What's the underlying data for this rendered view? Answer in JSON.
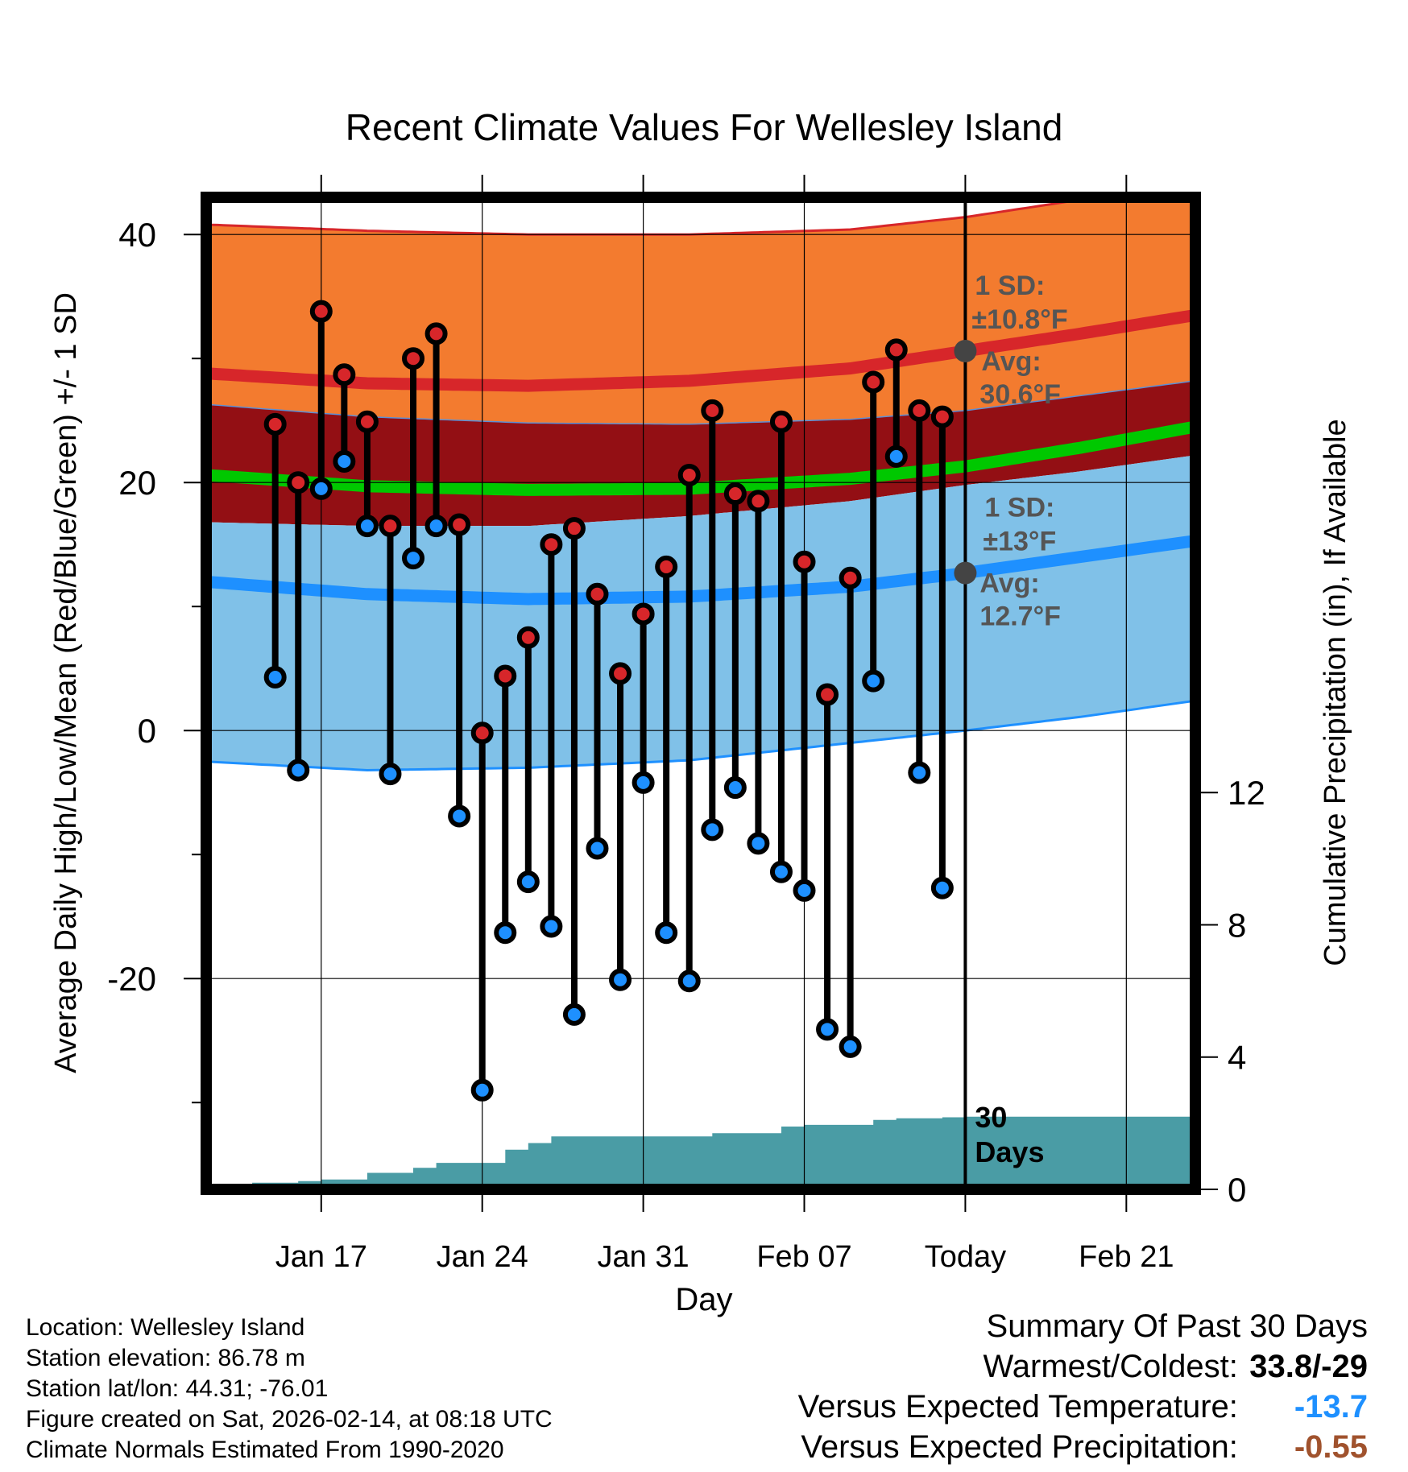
{
  "chart_data": {
    "type": "line",
    "title": "Recent Climate Values For Wellesley Island",
    "xlabel": "Day",
    "ylabel": "Average Daily High/Low/Mean (Red/Blue/Green) +/- 1 SD",
    "y2label": "Cumulative Precipitation (in), If Available",
    "ylim": [
      -37,
      43
    ],
    "y2lim": [
      0,
      30
    ],
    "day_range": [
      -33,
      10
    ],
    "yticks": [
      {
        "v": -20,
        "label": "-20"
      },
      {
        "v": 0,
        "label": "0"
      },
      {
        "v": 20,
        "label": "20"
      },
      {
        "v": 40,
        "label": "40"
      }
    ],
    "yminor": [
      -30,
      -10,
      10,
      30
    ],
    "y2ticks": [
      {
        "v": 0,
        "label": "0"
      },
      {
        "v": 4,
        "label": "4"
      },
      {
        "v": 8,
        "label": "8"
      },
      {
        "v": 12,
        "label": "12"
      }
    ],
    "xticks": [
      {
        "d": -28,
        "label": "Jan 17"
      },
      {
        "d": -21,
        "label": "Jan 24"
      },
      {
        "d": -14,
        "label": "Jan 31"
      },
      {
        "d": -7,
        "label": "Feb 07"
      },
      {
        "d": 0,
        "label": "Today"
      },
      {
        "d": 7,
        "label": "Feb 21"
      }
    ],
    "normals": {
      "days": [
        -33,
        -26,
        -19,
        -12,
        -5,
        0,
        5,
        10
      ],
      "high_mean": [
        28.8,
        28.0,
        27.8,
        28.2,
        29.2,
        30.6,
        32.0,
        33.5
      ],
      "high_upper": [
        40.8,
        40.3,
        40.0,
        40.0,
        40.4,
        41.4,
        42.8,
        44.3
      ],
      "high_lower": [
        26.3,
        25.3,
        24.8,
        24.7,
        25.1,
        25.8,
        27.0,
        28.2
      ],
      "mean": [
        20.6,
        19.7,
        19.4,
        19.5,
        20.3,
        21.3,
        22.8,
        24.5
      ],
      "low_mean": [
        12.0,
        11.0,
        10.6,
        10.8,
        11.6,
        12.7,
        14.0,
        15.3
      ],
      "low_upper": [
        16.8,
        16.5,
        16.5,
        17.3,
        18.5,
        19.8,
        20.9,
        22.2
      ],
      "low_lower": [
        -2.5,
        -3.2,
        -3.0,
        -2.4,
        -1.0,
        0.0,
        1.1,
        2.4
      ]
    },
    "daily": {
      "days": [
        -30,
        -29,
        -28,
        -27,
        -26,
        -25,
        -24,
        -23,
        -22,
        -21,
        -20,
        -19,
        -18,
        -17,
        -16,
        -15,
        -14,
        -13,
        -12,
        -11,
        -10,
        -9,
        -8,
        -7,
        -6,
        -5,
        -4,
        -3,
        -2,
        -1
      ],
      "high": [
        24.7,
        20.0,
        33.8,
        28.7,
        24.9,
        16.5,
        30.0,
        32.0,
        16.6,
        -0.2,
        4.4,
        7.5,
        15.0,
        16.3,
        11.0,
        4.6,
        9.4,
        13.2,
        20.6,
        25.8,
        19.1,
        18.5,
        24.9,
        13.6,
        2.9,
        12.3,
        28.1,
        30.7,
        25.8,
        25.3
      ],
      "low": [
        4.3,
        -3.2,
        19.5,
        21.7,
        16.5,
        -3.5,
        13.9,
        16.5,
        -6.9,
        -29.0,
        -16.3,
        -12.2,
        -15.8,
        -22.9,
        -9.5,
        -20.1,
        -4.2,
        -16.3,
        -20.2,
        -8.0,
        -4.6,
        -9.1,
        -11.4,
        -12.9,
        -24.1,
        -25.5,
        4.0,
        22.1,
        -3.4,
        -12.7
      ]
    },
    "precip": {
      "days": [
        -33,
        -32,
        -31,
        -30,
        -29,
        -28,
        -27,
        -26,
        -25,
        -24,
        -23,
        -22,
        -21,
        -20,
        -19,
        -18,
        -17,
        -16,
        -15,
        -14,
        -13,
        -12,
        -11,
        -10,
        -9,
        -8,
        -7,
        -6,
        -5,
        -4,
        -3,
        -2,
        -1,
        0,
        10
      ],
      "values": [
        0.0,
        0.0,
        0.2,
        0.2,
        0.25,
        0.3,
        0.3,
        0.5,
        0.5,
        0.65,
        0.8,
        0.8,
        0.8,
        1.2,
        1.4,
        1.6,
        1.6,
        1.6,
        1.6,
        1.6,
        1.6,
        1.6,
        1.7,
        1.7,
        1.7,
        1.9,
        1.95,
        1.95,
        1.95,
        2.1,
        2.15,
        2.15,
        2.18,
        2.2,
        2.2
      ]
    },
    "today_label": "Today",
    "window_label_1": "30",
    "window_label_2": "Days",
    "high_annotation": {
      "sd_label": "1 SD:",
      "sd_value": "±10.8°F",
      "avg_label": "Avg:",
      "avg_value": "30.6°F",
      "avg": 30.6
    },
    "low_annotation": {
      "sd_label": "1 SD:",
      "sd_value": "±13°F",
      "avg_label": "Avg:",
      "avg_value": "12.7°F",
      "avg": 12.7
    },
    "colors": {
      "high_band": "#f37b2f",
      "high_line": "#d7262a",
      "mean_band": "#930f14",
      "mean_line": "#00c800",
      "low_band": "#80c1e8",
      "low_line": "#1e90ff",
      "precip": "#4a9ca5",
      "high_dot": "#d7262a",
      "low_dot": "#1e90ff",
      "annotation": "#555555"
    }
  },
  "info": {
    "location": "Location: Wellesley Island",
    "elevation": "Station elevation: 86.78 m",
    "latlon": "Station lat/lon: 44.31; -76.01",
    "created": "Figure created on Sat, 2026-02-14, at 08:18 UTC",
    "normals": "Climate Normals Estimated From 1990-2020"
  },
  "summary": {
    "title": "Summary Of Past 30 Days",
    "warm_cold_label": "Warmest/Coldest:",
    "warm_cold_value": "33.8/-29",
    "temp_label": "Versus Expected Temperature:",
    "temp_value": "-13.7",
    "temp_color": "#1e90ff",
    "precip_label": "Versus Expected Precipitation:",
    "precip_value": "-0.55",
    "precip_color": "#a0522d"
  }
}
